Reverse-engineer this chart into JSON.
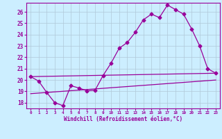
{
  "xlabel": "Windchill (Refroidissement éolien,°C)",
  "bg_color": "#cceeff",
  "line_color": "#990099",
  "grid_color": "#b0c8d8",
  "xlim": [
    -0.5,
    23.5
  ],
  "ylim": [
    17.5,
    26.8
  ],
  "xticks": [
    0,
    1,
    2,
    3,
    4,
    5,
    6,
    7,
    8,
    9,
    10,
    11,
    12,
    13,
    14,
    15,
    16,
    17,
    18,
    19,
    20,
    21,
    22,
    23
  ],
  "yticks": [
    18,
    19,
    20,
    21,
    22,
    23,
    24,
    25,
    26
  ],
  "line1_x": [
    0,
    1,
    2,
    3,
    4,
    5,
    6,
    7,
    8,
    9,
    10,
    11,
    12,
    13,
    14,
    15,
    16,
    17,
    18,
    19,
    20,
    21,
    22,
    23
  ],
  "line1_y": [
    20.3,
    19.9,
    18.9,
    18.0,
    17.75,
    19.5,
    19.3,
    19.05,
    19.1,
    20.4,
    21.5,
    22.8,
    23.3,
    24.2,
    25.3,
    25.8,
    25.5,
    26.6,
    26.2,
    25.8,
    24.5,
    23.0,
    21.0,
    20.6
  ],
  "line2_x": [
    0,
    23
  ],
  "line2_y": [
    20.3,
    20.6
  ],
  "line3_x": [
    0,
    23
  ],
  "line3_y": [
    18.8,
    20.0
  ],
  "marker": "D",
  "marker_size": 2.5,
  "linewidth": 0.9
}
